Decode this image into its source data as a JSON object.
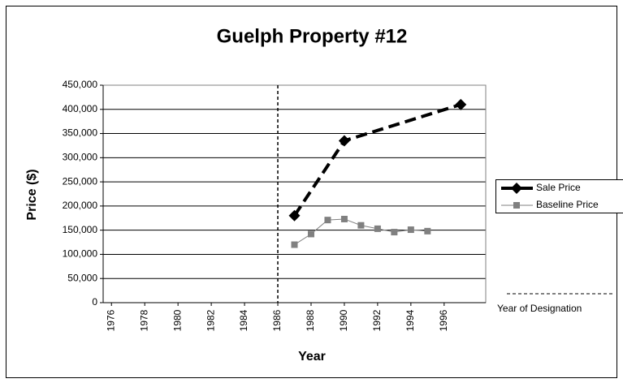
{
  "chart_data": {
    "type": "line",
    "title": "Guelph Property #12",
    "xlabel": "Year",
    "ylabel": "Price ($)",
    "xlim": [
      1975.5,
      1998.5
    ],
    "xticks": [
      1976,
      1978,
      1980,
      1982,
      1984,
      1986,
      1988,
      1990,
      1992,
      1994,
      1996
    ],
    "ylim": [
      0,
      450000
    ],
    "yticks": [
      0,
      {
        "value": 50000,
        "label": "50,000"
      },
      {
        "value": 100000,
        "label": "100,000"
      },
      {
        "value": 150000,
        "label": "150,000"
      },
      {
        "value": 200000,
        "label": "200,000"
      },
      {
        "value": 250000,
        "label": "250,000"
      },
      {
        "value": 300000,
        "label": "300,000"
      },
      {
        "value": 350000,
        "label": "350,000"
      },
      {
        "value": 400000,
        "label": "400,000"
      },
      {
        "value": 450000,
        "label": "450,000"
      }
    ],
    "grid": true,
    "legend": "right",
    "series": [
      {
        "name": "Sale Price",
        "color": "#000000",
        "marker": "diamond",
        "x": [
          1987,
          1990,
          1997
        ],
        "values": [
          180000,
          335000,
          410000
        ]
      },
      {
        "name": "Baseline Price",
        "color": "#808080",
        "marker": "square",
        "x": [
          1987,
          1988,
          1989,
          1990,
          1991,
          1992,
          1993,
          1994,
          1995
        ],
        "values": [
          120000,
          142000,
          171000,
          173000,
          160000,
          153000,
          146000,
          151000,
          148000
        ]
      }
    ],
    "designation": {
      "name": "Year of Designation",
      "x": 1986
    }
  }
}
